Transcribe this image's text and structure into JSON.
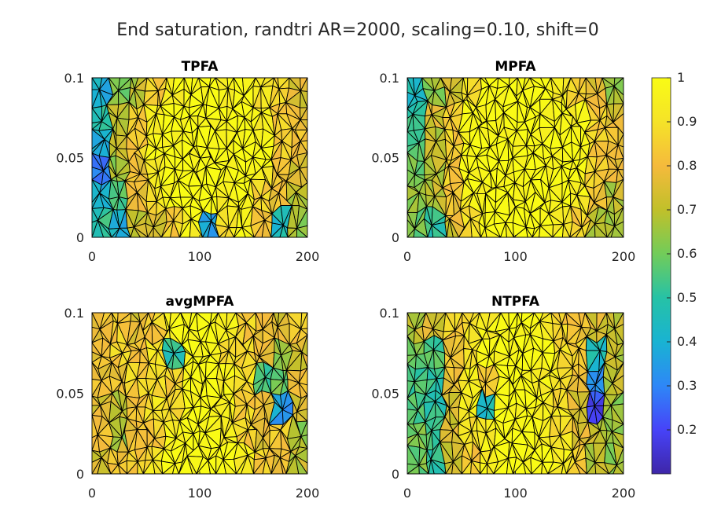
{
  "figure": {
    "title": "End saturation, randtri AR=2000, scaling=0.10, shift=0"
  },
  "chart_data": [
    {
      "type": "heatmap",
      "title": "TPFA",
      "xlim": [
        0,
        200
      ],
      "ylim": [
        0,
        0.1
      ],
      "xticks": [
        "0",
        "100",
        "200"
      ],
      "yticks": [
        "0",
        "0.05",
        "0.1"
      ],
      "grid_values": [
        [
          0.4,
          0.6,
          0.7,
          0.85,
          0.95,
          1.0,
          1.0,
          0.95,
          1.0,
          0.9,
          0.85,
          0.75
        ],
        [
          0.5,
          0.7,
          0.85,
          0.95,
          1.0,
          1.0,
          1.0,
          1.0,
          1.0,
          0.95,
          0.85,
          0.8
        ],
        [
          0.4,
          0.7,
          0.85,
          1.0,
          1.0,
          1.0,
          1.0,
          1.0,
          1.0,
          1.0,
          0.85,
          0.8
        ],
        [
          0.3,
          0.65,
          0.8,
          0.95,
          1.0,
          1.0,
          1.0,
          1.0,
          1.0,
          0.95,
          0.8,
          0.75
        ],
        [
          0.4,
          0.55,
          0.8,
          0.9,
          1.0,
          1.0,
          1.0,
          0.95,
          1.0,
          0.85,
          0.8,
          0.7
        ],
        [
          0.5,
          0.4,
          0.7,
          0.75,
          0.85,
          0.95,
          0.35,
          0.9,
          1.0,
          0.8,
          0.45,
          0.65
        ]
      ]
    },
    {
      "type": "heatmap",
      "title": "MPFA",
      "xlim": [
        0,
        200
      ],
      "ylim": [
        0,
        0.1
      ],
      "xticks": [
        "0",
        "100",
        "200"
      ],
      "yticks": [
        "0",
        "0.05",
        "0.1"
      ],
      "grid_values": [
        [
          0.45,
          0.65,
          0.75,
          0.9,
          1.0,
          1.0,
          1.0,
          1.0,
          0.95,
          0.85,
          0.75,
          0.65
        ],
        [
          0.5,
          0.75,
          0.85,
          1.0,
          1.0,
          1.0,
          1.0,
          1.0,
          1.0,
          0.95,
          0.85,
          0.75
        ],
        [
          0.55,
          0.7,
          0.85,
          1.0,
          1.0,
          1.0,
          1.0,
          1.0,
          1.0,
          1.0,
          0.85,
          0.8
        ],
        [
          0.6,
          0.7,
          0.85,
          1.0,
          1.0,
          1.0,
          1.0,
          1.0,
          1.0,
          1.0,
          0.85,
          0.75
        ],
        [
          0.65,
          0.7,
          0.8,
          0.95,
          1.0,
          1.0,
          1.0,
          1.0,
          1.0,
          0.95,
          0.8,
          0.7
        ],
        [
          0.6,
          0.5,
          0.75,
          0.9,
          1.0,
          1.0,
          1.0,
          1.0,
          0.95,
          0.85,
          0.7,
          0.65
        ]
      ]
    },
    {
      "type": "heatmap",
      "title": "avgMPFA",
      "xlim": [
        0,
        200
      ],
      "ylim": [
        0,
        0.1
      ],
      "xticks": [
        "0",
        "100",
        "200"
      ],
      "yticks": [
        "0",
        "0.05",
        "0.1"
      ],
      "grid_values": [
        [
          0.8,
          0.85,
          0.75,
          0.85,
          0.95,
          1.0,
          1.0,
          0.95,
          0.85,
          0.8,
          0.75,
          0.85
        ],
        [
          0.8,
          0.85,
          0.8,
          0.9,
          0.5,
          1.0,
          1.0,
          0.9,
          0.85,
          0.8,
          0.65,
          0.75
        ],
        [
          0.8,
          0.8,
          0.85,
          0.9,
          0.85,
          1.0,
          1.0,
          0.95,
          0.9,
          0.55,
          0.6,
          0.8
        ],
        [
          0.75,
          0.7,
          0.8,
          0.9,
          0.9,
          1.0,
          1.0,
          0.95,
          0.85,
          0.8,
          0.35,
          0.75
        ],
        [
          0.8,
          0.65,
          0.8,
          0.85,
          0.95,
          1.0,
          1.0,
          0.95,
          0.85,
          0.75,
          0.85,
          0.65
        ],
        [
          0.75,
          0.8,
          0.85,
          0.9,
          1.0,
          1.0,
          1.0,
          1.0,
          0.95,
          0.85,
          0.8,
          0.7
        ]
      ]
    },
    {
      "type": "heatmap",
      "title": "NTPFA",
      "xlim": [
        0,
        200
      ],
      "ylim": [
        0,
        0.1
      ],
      "xticks": [
        "0",
        "100",
        "200"
      ],
      "yticks": [
        "0",
        "0.05",
        "0.1"
      ],
      "grid_values": [
        [
          0.7,
          0.75,
          0.85,
          0.9,
          0.95,
          1.0,
          1.0,
          0.95,
          0.85,
          0.8,
          0.75,
          0.7
        ],
        [
          0.6,
          0.55,
          0.8,
          0.9,
          1.0,
          1.0,
          1.0,
          1.0,
          0.9,
          0.85,
          0.45,
          0.7
        ],
        [
          0.55,
          0.5,
          0.8,
          0.95,
          0.85,
          1.0,
          1.0,
          0.95,
          0.9,
          0.8,
          0.35,
          0.7
        ],
        [
          0.55,
          0.5,
          0.75,
          0.95,
          0.45,
          1.0,
          1.0,
          0.95,
          0.9,
          0.75,
          0.2,
          0.65
        ],
        [
          0.6,
          0.55,
          0.75,
          0.9,
          0.95,
          1.0,
          1.0,
          0.95,
          0.9,
          0.75,
          0.7,
          0.65
        ],
        [
          0.6,
          0.5,
          0.7,
          0.85,
          0.95,
          1.0,
          1.0,
          1.0,
          0.95,
          0.85,
          0.7,
          0.65
        ]
      ]
    }
  ],
  "colorbar": {
    "limits": [
      0.1,
      1.0
    ],
    "ticks": [
      0.2,
      0.3,
      0.4,
      0.5,
      0.6,
      0.7,
      0.8,
      0.9,
      1
    ],
    "tick_labels": [
      "0.2",
      "0.3",
      "0.4",
      "0.5",
      "0.6",
      "0.7",
      "0.8",
      "0.9",
      "1"
    ],
    "colormap": "parula",
    "stops": [
      "#3e26a8",
      "#4743f8",
      "#2e87f7",
      "#19b3d2",
      "#26c2a6",
      "#72cc59",
      "#c1c02a",
      "#f5ba3c",
      "#f5e328",
      "#f9fb15"
    ]
  }
}
